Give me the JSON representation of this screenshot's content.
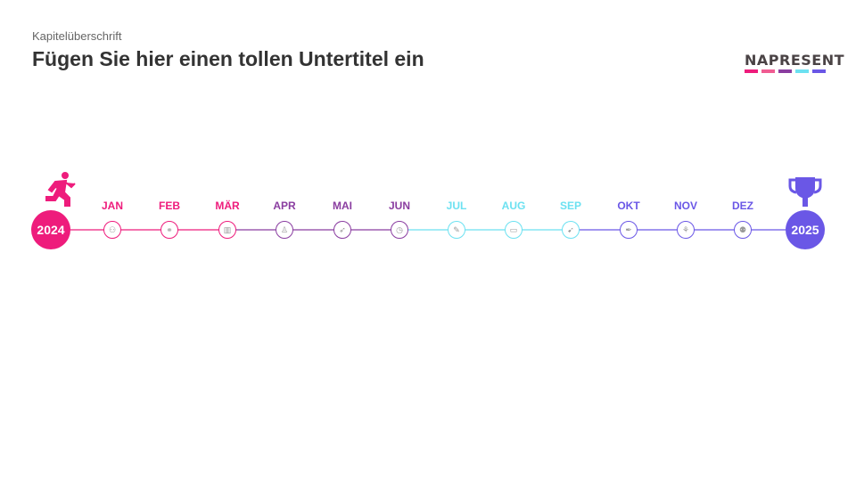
{
  "header": {
    "chapter": "Kapitelüberschrift",
    "subtitle": "Fügen Sie hier einen tollen Untertitel ein"
  },
  "logo": {
    "text": "NAPRESENT",
    "colors": [
      "#EE1C7C",
      "#F05C92",
      "#8A3DA0",
      "#6CE1F1",
      "#6A57E6"
    ]
  },
  "timeline": {
    "start": {
      "year": "2024",
      "color": "#EE1C7C",
      "icon": "running-person-icon"
    },
    "end": {
      "year": "2025",
      "color": "#6A57E6",
      "icon": "trophy-icon"
    },
    "months": [
      {
        "label": "JAN",
        "color": "#EE1C7C",
        "icon": "people-icon"
      },
      {
        "label": "FEB",
        "color": "#EE1C7C",
        "icon": "handshake-icon"
      },
      {
        "label": "MÄR",
        "color": "#EE1C7C",
        "icon": "bar-chart-icon"
      },
      {
        "label": "APR",
        "color": "#8A3DA0",
        "icon": "person-icon"
      },
      {
        "label": "MAI",
        "color": "#8A3DA0",
        "icon": "rocket-icon"
      },
      {
        "label": "JUN",
        "color": "#8A3DA0",
        "icon": "clock-icon"
      },
      {
        "label": "JUL",
        "color": "#6CE1F1",
        "icon": "chat-icon"
      },
      {
        "label": "AUG",
        "color": "#6CE1F1",
        "icon": "briefcase-icon"
      },
      {
        "label": "SEP",
        "color": "#6CE1F1",
        "icon": "megaphone-icon"
      },
      {
        "label": "OKT",
        "color": "#6A57E6",
        "icon": "pen-icon"
      },
      {
        "label": "NOV",
        "color": "#6A57E6",
        "icon": "network-icon"
      },
      {
        "label": "DEZ",
        "color": "#6A57E6",
        "icon": "team-icon"
      }
    ]
  }
}
